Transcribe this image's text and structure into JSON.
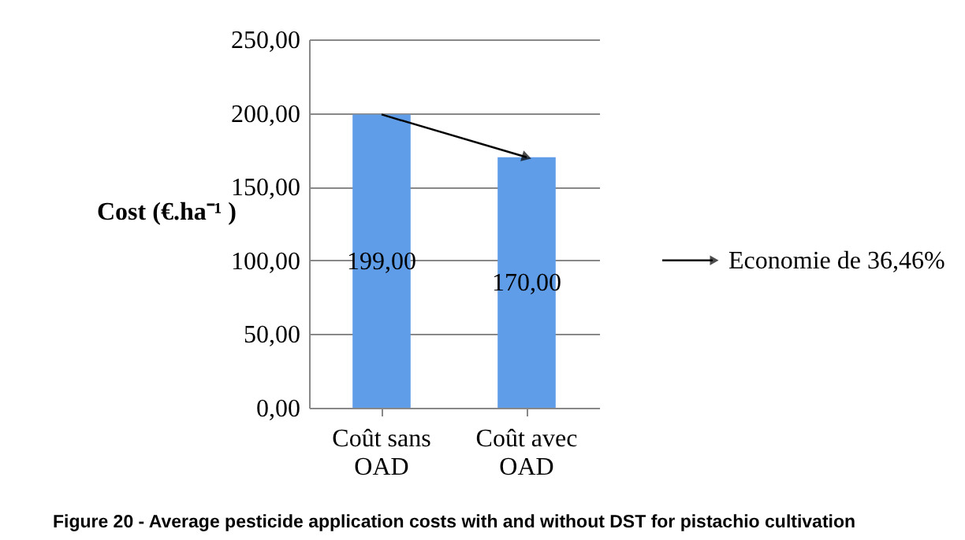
{
  "chart_data": {
    "type": "bar",
    "title": "Figure 20 - Average pesticide application costs with and without DST for pistachio cultivation",
    "ylabel": "Cost (€.ha⁻¹ )",
    "categories": [
      "Coût sans OAD",
      "Coût avec OAD"
    ],
    "values": [
      199.0,
      170.0
    ],
    "color": "#5f9de8",
    "value_labels": [
      "199,00",
      "170,00"
    ],
    "ylim": [
      0,
      250
    ],
    "yticks": [
      {
        "value": 0,
        "label": "0,00"
      },
      {
        "value": 50,
        "label": "50,00"
      },
      {
        "value": 100,
        "label": "100,00"
      },
      {
        "value": 150,
        "label": "150,00"
      },
      {
        "value": 200,
        "label": "200,00"
      },
      {
        "value": 250,
        "label": "250,00"
      }
    ],
    "grid": "y",
    "annotations": [
      "Economie de 36,46%"
    ]
  }
}
